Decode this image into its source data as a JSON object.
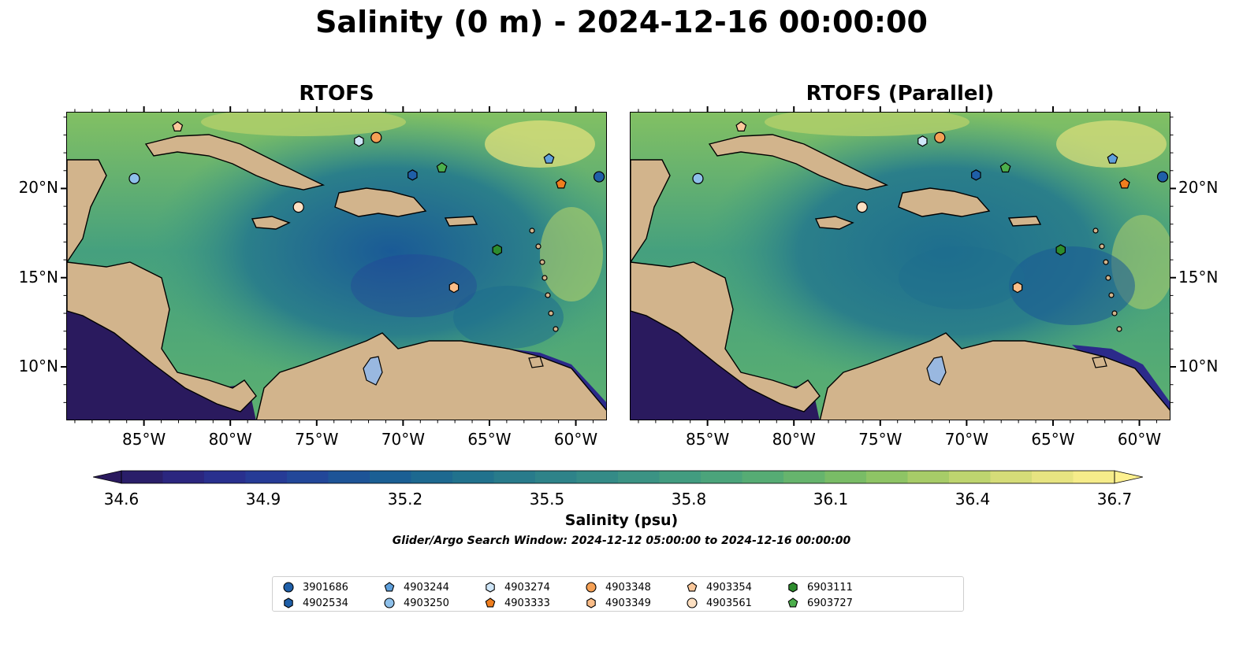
{
  "title": "Salinity (0 m) - 2024-12-16 00:00:00",
  "panels": [
    {
      "title": "RTOFS"
    },
    {
      "title": "RTOFS (Parallel)"
    }
  ],
  "axes": {
    "x_ticks": [
      "85°W",
      "80°W",
      "75°W",
      "70°W",
      "65°W",
      "60°W"
    ],
    "y_ticks": [
      "20°N",
      "15°N",
      "10°N"
    ]
  },
  "colorbar": {
    "label": "Salinity (psu)",
    "min": 34.6,
    "max": 36.7,
    "extend": "both",
    "ticks": [
      "34.6",
      "34.9",
      "35.2",
      "35.5",
      "35.8",
      "36.1",
      "36.4",
      "36.7"
    ],
    "colormap": "haline",
    "colors": [
      "#2a1a5e",
      "#2b2a8a",
      "#24409a",
      "#1a5a96",
      "#1e6e8e",
      "#2b7f8a",
      "#378f86",
      "#45a07e",
      "#5cb070",
      "#82c063",
      "#b3d06a",
      "#e0e07c",
      "#fdf08f"
    ]
  },
  "search_window": "Glider/Argo Search Window: 2024-12-12 05:00:00 to 2024-12-16 00:00:00",
  "land_color": "#d2b48c",
  "lake_color": "#99b8e0",
  "floats": [
    {
      "id": "3901686",
      "marker": "circle",
      "color": "#1f5fa8"
    },
    {
      "id": "4902534",
      "marker": "hexagon",
      "color": "#1f5fa8"
    },
    {
      "id": "4903244",
      "marker": "pentagon",
      "color": "#5fa0dc"
    },
    {
      "id": "4903250",
      "marker": "circle",
      "color": "#8ec0ea"
    },
    {
      "id": "4903274",
      "marker": "hexagon",
      "color": "#cfe6f8"
    },
    {
      "id": "4903333",
      "marker": "pentagon",
      "color": "#ef7e1e"
    },
    {
      "id": "4903348",
      "marker": "circle",
      "color": "#f5a055"
    },
    {
      "id": "4903349",
      "marker": "hexagon",
      "color": "#fbbd88"
    },
    {
      "id": "4903354",
      "marker": "pentagon",
      "color": "#fbc89b"
    },
    {
      "id": "4903561",
      "marker": "circle",
      "color": "#fde0c2"
    },
    {
      "id": "6903111",
      "marker": "hexagon",
      "color": "#2d8c2d"
    },
    {
      "id": "6903727",
      "marker": "pentagon",
      "color": "#4caf4c"
    }
  ],
  "positions_panel1": [
    {
      "id": "3901686",
      "lon": -58.7,
      "lat": 20.7
    },
    {
      "id": "4902534",
      "lon": -69.5,
      "lat": 20.8
    },
    {
      "id": "4903244",
      "lon": -61.6,
      "lat": 21.7
    },
    {
      "id": "4903250",
      "lon": -85.6,
      "lat": 20.6
    },
    {
      "id": "4903274",
      "lon": -72.6,
      "lat": 22.7
    },
    {
      "id": "4903333",
      "lon": -60.9,
      "lat": 20.3
    },
    {
      "id": "4903348",
      "lon": -71.6,
      "lat": 22.9
    },
    {
      "id": "4903349",
      "lon": -67.1,
      "lat": 14.5
    },
    {
      "id": "4903354",
      "lon": -83.1,
      "lat": 23.5
    },
    {
      "id": "4903561",
      "lon": -76.1,
      "lat": 19.0
    },
    {
      "id": "6903111",
      "lon": -64.6,
      "lat": 16.6
    },
    {
      "id": "6903727",
      "lon": -67.8,
      "lat": 21.2
    }
  ],
  "positions_panel2": [
    {
      "id": "3901686",
      "lon": -58.7,
      "lat": 20.7
    },
    {
      "id": "4902534",
      "lon": -69.5,
      "lat": 20.8
    },
    {
      "id": "4903244",
      "lon": -61.6,
      "lat": 21.7
    },
    {
      "id": "4903250",
      "lon": -85.6,
      "lat": 20.6
    },
    {
      "id": "4903274",
      "lon": -72.6,
      "lat": 22.7
    },
    {
      "id": "4903333",
      "lon": -60.9,
      "lat": 20.3
    },
    {
      "id": "4903348",
      "lon": -71.6,
      "lat": 22.9
    },
    {
      "id": "4903349",
      "lon": -67.1,
      "lat": 14.5
    },
    {
      "id": "4903354",
      "lon": -83.1,
      "lat": 23.5
    },
    {
      "id": "4903561",
      "lon": -76.1,
      "lat": 19.0
    },
    {
      "id": "6903111",
      "lon": -64.6,
      "lat": 16.6
    },
    {
      "id": "6903727",
      "lon": -67.8,
      "lat": 21.2
    }
  ]
}
